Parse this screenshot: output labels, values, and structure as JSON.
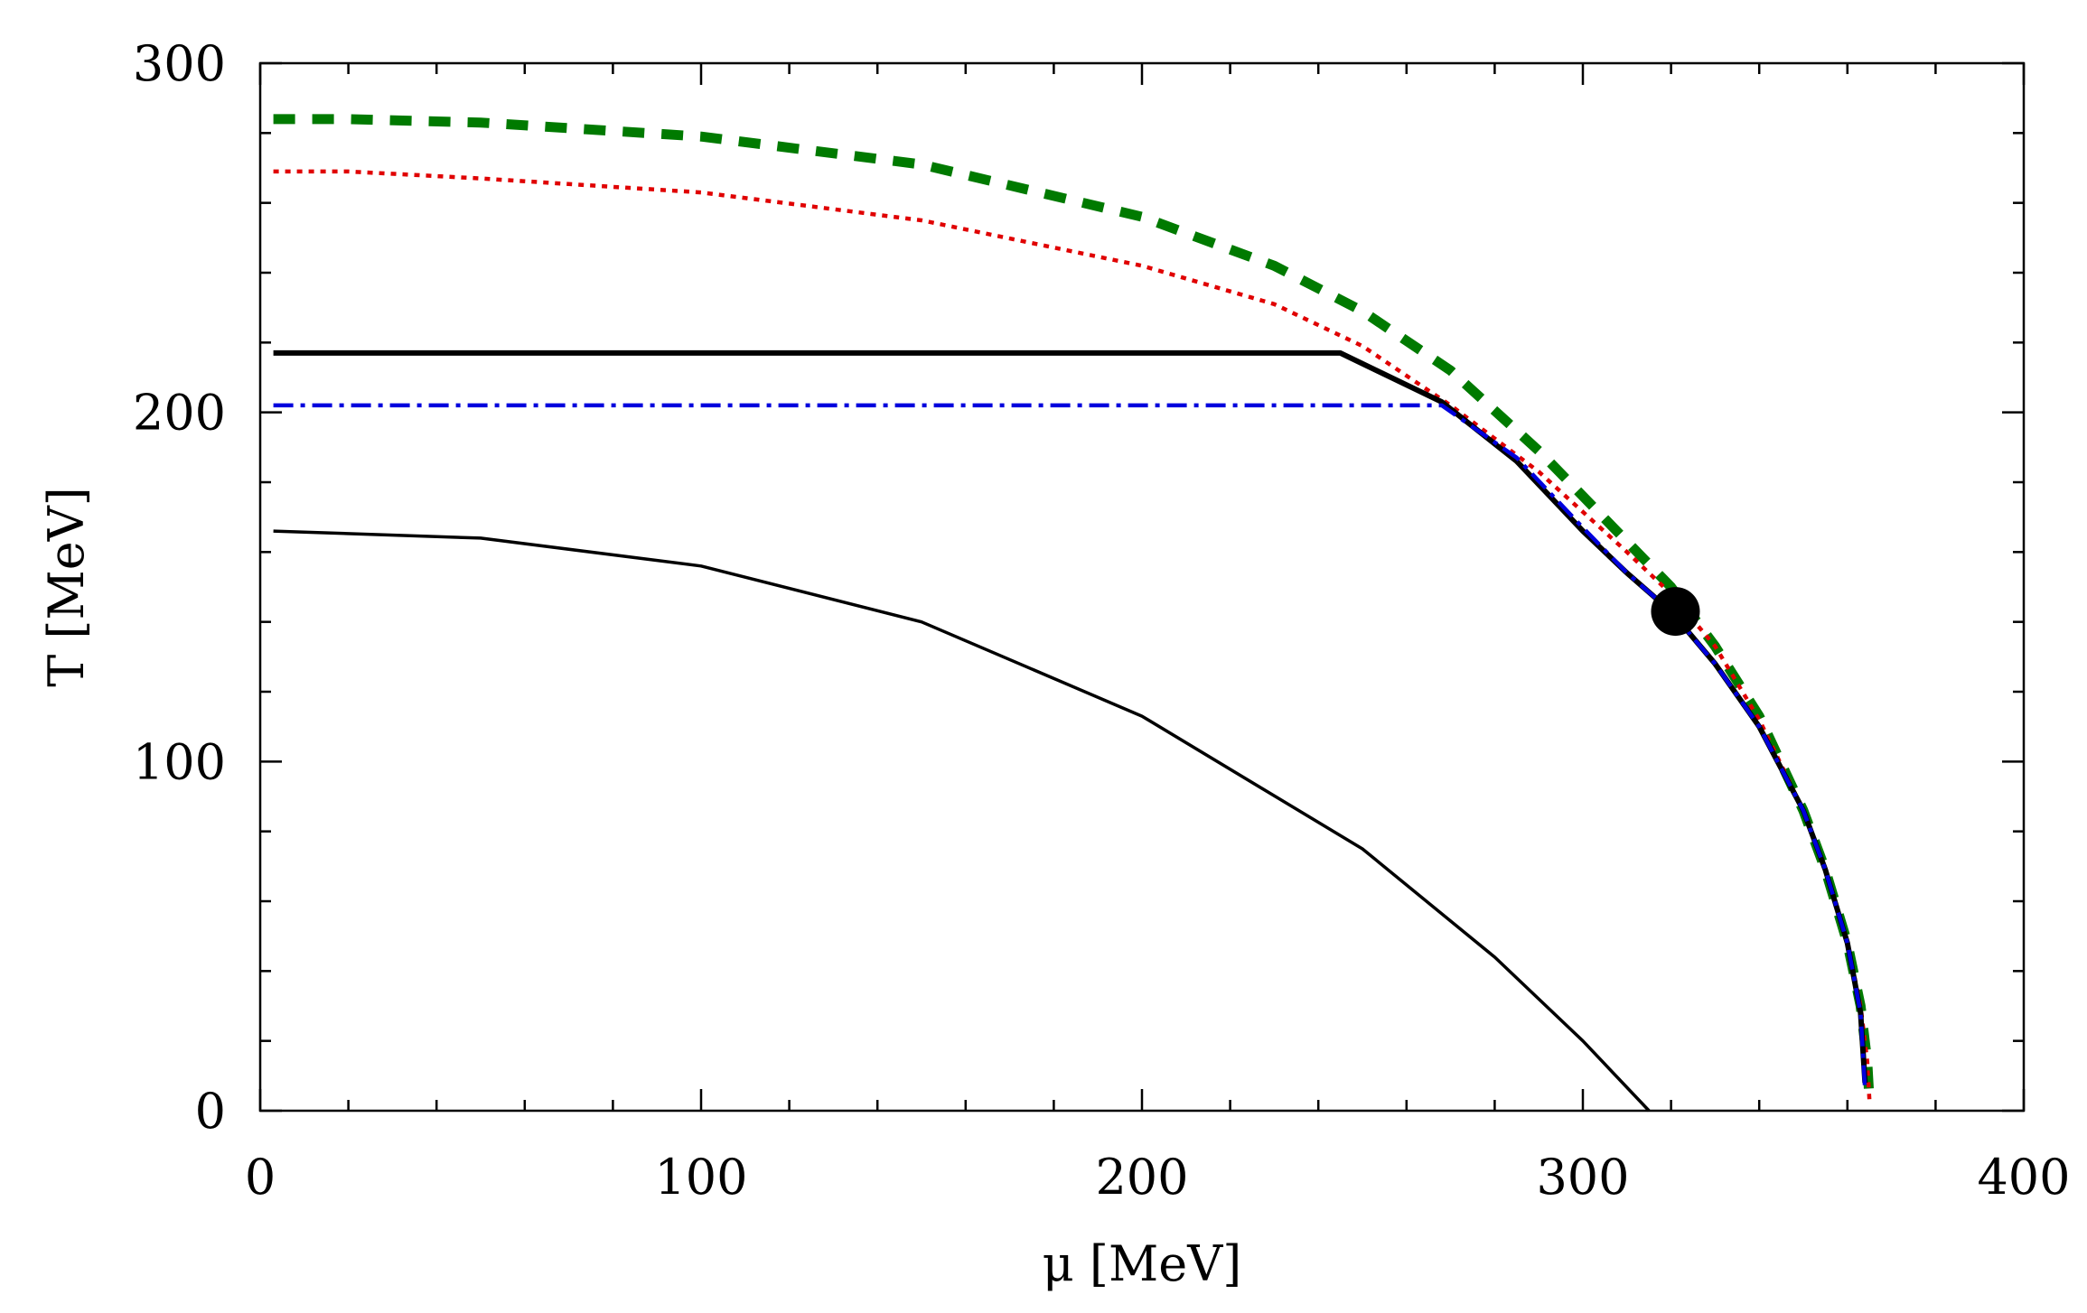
{
  "chart_data": {
    "type": "line",
    "title": "",
    "xlabel": "μ [MeV]",
    "ylabel": "T [MeV]",
    "xlim": [
      0,
      400
    ],
    "ylim": [
      0,
      300
    ],
    "x_ticks": [
      0,
      100,
      200,
      300,
      400
    ],
    "y_ticks": [
      0,
      100,
      200,
      300
    ],
    "x_tick_labels": [
      "0",
      "100",
      "200",
      "300",
      "400"
    ],
    "y_tick_labels": [
      "0",
      "100",
      "200",
      "300"
    ],
    "x_minor_step": 20,
    "y_minor_step": 20,
    "grid": false,
    "series": [
      {
        "name": "green-dashed",
        "color": "#007a00",
        "style": "dashed",
        "points": [
          [
            3,
            284
          ],
          [
            20,
            284
          ],
          [
            50,
            283
          ],
          [
            100,
            279
          ],
          [
            150,
            271
          ],
          [
            200,
            256
          ],
          [
            230,
            242
          ],
          [
            250,
            229
          ],
          [
            270,
            212
          ],
          [
            290,
            189
          ],
          [
            310,
            163
          ],
          [
            320,
            150
          ],
          [
            330,
            133
          ],
          [
            340,
            113
          ],
          [
            350,
            86
          ],
          [
            355,
            69
          ],
          [
            360,
            48
          ],
          [
            363,
            30
          ],
          [
            364.5,
            14
          ],
          [
            365,
            3
          ]
        ]
      },
      {
        "name": "red-dotted",
        "color": "#e00000",
        "style": "dotted",
        "points": [
          [
            3,
            269
          ],
          [
            20,
            269
          ],
          [
            50,
            267
          ],
          [
            100,
            263
          ],
          [
            150,
            255
          ],
          [
            200,
            242
          ],
          [
            230,
            231
          ],
          [
            250,
            219
          ],
          [
            270,
            202
          ],
          [
            290,
            183
          ],
          [
            310,
            160
          ],
          [
            320,
            148
          ],
          [
            330,
            133
          ],
          [
            340,
            112
          ],
          [
            350,
            86
          ],
          [
            355,
            69
          ],
          [
            360,
            48
          ],
          [
            363,
            30
          ],
          [
            364.5,
            14
          ],
          [
            365,
            3
          ]
        ]
      },
      {
        "name": "black-thick-solid",
        "color": "#000000",
        "style": "solid-thick",
        "points": [
          [
            3,
            217
          ],
          [
            245,
            217
          ],
          [
            268,
            203
          ],
          [
            285,
            186
          ],
          [
            300,
            166
          ],
          [
            310,
            154
          ],
          [
            320,
            143
          ],
          [
            330,
            128
          ],
          [
            340,
            110
          ],
          [
            350,
            86
          ],
          [
            355,
            69
          ],
          [
            360,
            48
          ],
          [
            363,
            28
          ],
          [
            364,
            8
          ]
        ]
      },
      {
        "name": "blue-dash-dot",
        "color": "#0000dd",
        "style": "dashdot",
        "points": [
          [
            3,
            202
          ],
          [
            268,
            202
          ],
          [
            285,
            187
          ],
          [
            300,
            167
          ],
          [
            310,
            154
          ],
          [
            320,
            143
          ],
          [
            330,
            128
          ],
          [
            340,
            110
          ],
          [
            350,
            86
          ],
          [
            355,
            69
          ],
          [
            360,
            48
          ],
          [
            363,
            28
          ],
          [
            364,
            6
          ]
        ]
      },
      {
        "name": "black-thin-solid",
        "color": "#000000",
        "style": "solid-thin",
        "points": [
          [
            3,
            166
          ],
          [
            50,
            164
          ],
          [
            100,
            156
          ],
          [
            150,
            140
          ],
          [
            200,
            113
          ],
          [
            250,
            75
          ],
          [
            280,
            44
          ],
          [
            300,
            20
          ],
          [
            315,
            0
          ]
        ]
      }
    ],
    "markers": [
      {
        "name": "critical-point",
        "x": 321,
        "y": 143,
        "color": "#000000"
      }
    ]
  }
}
